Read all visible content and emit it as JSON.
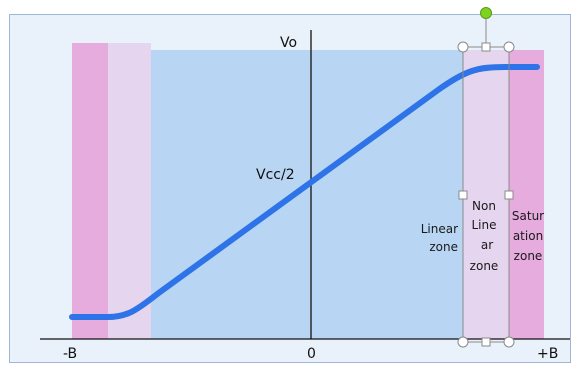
{
  "labels": {
    "vo": "Vo",
    "vcc2": "Vcc/2",
    "neg_b": "-B",
    "zero": "0",
    "pos_b": "+B"
  },
  "zones": {
    "linear": [
      "Linear",
      "zone"
    ],
    "nonlinear": [
      "Non",
      "Line",
      "ar",
      "zone"
    ],
    "saturation": [
      "Satur",
      "ation",
      "zone"
    ]
  },
  "colors": {
    "panel_bg": "#e9f1fa",
    "linear_fill": "#b8d6f3",
    "saturation_fill": "#e5acdd",
    "nonlinear_fill": "#e6d5ef",
    "curve": "#2e73e8",
    "handle_green": "#7ed321"
  }
}
